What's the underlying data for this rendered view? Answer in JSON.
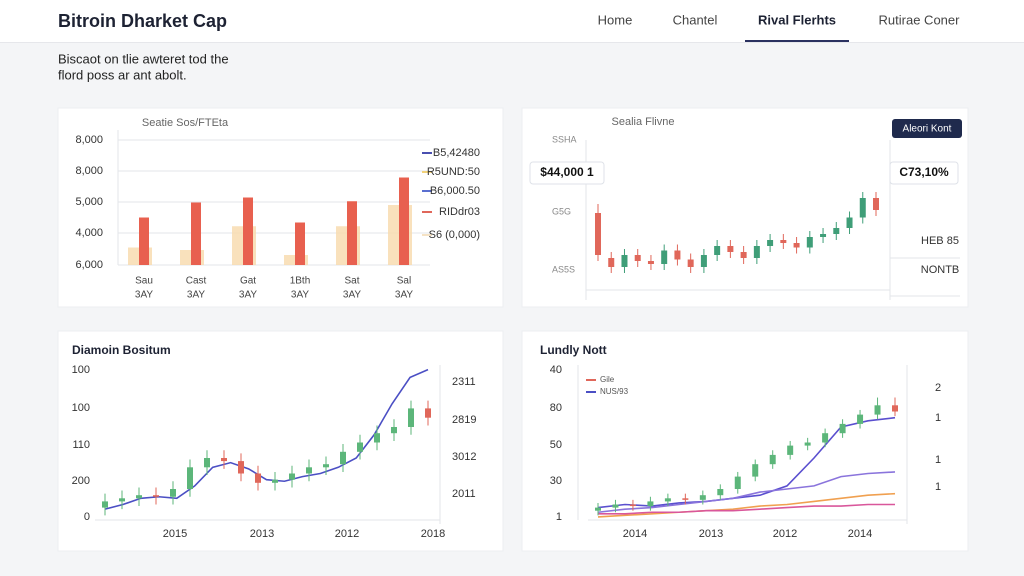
{
  "header": {
    "title": "Bitroin Dharket Cap",
    "nav": [
      "Home",
      "Chantel",
      "Rival Flerhts",
      "Rutirae Coner"
    ],
    "nav_active": 2
  },
  "intro": [
    "Biscaot on tlie awteret tod the",
    "flord poss ar ant abolt."
  ],
  "chart_data": [
    {
      "type": "bar",
      "title": "Seatie Sos/FTEta",
      "y_labels": [
        "8,000",
        "8,000",
        "5,000",
        "4,000",
        "6,000"
      ],
      "categories": [
        [
          "Sau",
          "3AY"
        ],
        [
          "Cast",
          "3AY"
        ],
        [
          "Gat",
          "3AY"
        ],
        [
          "1Bth",
          "3AY"
        ],
        [
          "Sat",
          "3AY"
        ],
        [
          "Sal",
          "3AY"
        ]
      ],
      "ylim": [
        0,
        100
      ],
      "series": [
        {
          "color": "#f8dcb0",
          "values": [
            14,
            12,
            31,
            8,
            31,
            48
          ]
        },
        {
          "color": "#e8604f",
          "values": [
            38,
            50,
            54,
            34,
            51,
            70
          ]
        }
      ],
      "legend": [
        {
          "label": "B5,42480",
          "color": "#4a4fb0"
        },
        {
          "label": "R5UND:50",
          "color": "#f2d27a"
        },
        {
          "label": "B6,000.50",
          "color": "#5a6fd0"
        },
        {
          "label": "RIDdr03",
          "color": "#e0675a"
        },
        {
          "label": "S6 (0,000)",
          "color": "#f5e2c4"
        }
      ],
      "grid": true
    },
    {
      "type": "candlestick",
      "title": "Sealia Flivne",
      "button": "Aleori Kont",
      "y_labels": [
        "SSHA",
        "G5G",
        "AS5S"
      ],
      "y2_labels": [
        "HEB 85",
        "NONTB"
      ],
      "price_box": "$44,000 1",
      "change_box": "C73,10%",
      "ylim": [
        0,
        100
      ],
      "up_color": "#3f9e78",
      "down_color": "#e0675a",
      "candles": {
        "open": [
          58,
          28,
          22,
          30,
          26,
          24,
          33,
          27,
          22,
          30,
          36,
          32,
          28,
          36,
          40,
          38,
          35,
          42,
          44,
          48,
          55,
          68
        ],
        "close": [
          30,
          22,
          30,
          26,
          24,
          33,
          27,
          22,
          30,
          36,
          32,
          28,
          36,
          40,
          38,
          35,
          42,
          44,
          48,
          55,
          68,
          60
        ],
        "high": [
          64,
          32,
          34,
          34,
          30,
          37,
          37,
          31,
          34,
          40,
          40,
          36,
          40,
          44,
          44,
          42,
          46,
          48,
          52,
          59,
          72,
          72
        ],
        "low": [
          26,
          18,
          18,
          22,
          20,
          20,
          23,
          18,
          18,
          26,
          28,
          24,
          24,
          32,
          34,
          31,
          31,
          38,
          40,
          44,
          51,
          56
        ]
      }
    },
    {
      "type": "combo",
      "title": "Diamoin Bositum",
      "y_labels": [
        "100",
        "100",
        "110",
        "200",
        "0"
      ],
      "y2_labels": [
        "2311",
        "2819",
        "3012",
        "2011"
      ],
      "x_labels": [
        "2015",
        "2013",
        "2012",
        "2018"
      ],
      "ylim": [
        0,
        100
      ],
      "up_color": "#5cb67a",
      "down_color": "#e0675a",
      "series": [
        {
          "color": "#4b4fc4",
          "values": [
            7,
            10,
            14,
            15,
            14,
            22,
            34,
            37,
            33,
            26,
            25,
            28,
            30,
            34,
            40,
            55,
            75,
            92,
            97
          ]
        }
      ],
      "candles": {
        "open": [
          8,
          12,
          14,
          16,
          15,
          20,
          34,
          40,
          38,
          30,
          24,
          26,
          30,
          34,
          36,
          44,
          50,
          56,
          60,
          72
        ],
        "close": [
          12,
          14,
          16,
          15,
          20,
          34,
          40,
          38,
          30,
          24,
          26,
          30,
          34,
          36,
          44,
          50,
          56,
          60,
          72,
          66
        ],
        "high": [
          17,
          19,
          21,
          21,
          25,
          39,
          45,
          45,
          43,
          35,
          31,
          35,
          39,
          41,
          49,
          55,
          61,
          65,
          77,
          77
        ],
        "low": [
          3,
          7,
          9,
          10,
          10,
          15,
          29,
          33,
          25,
          19,
          19,
          21,
          25,
          29,
          31,
          39,
          45,
          51,
          55,
          61
        ]
      }
    },
    {
      "type": "combo",
      "title": "Lundly Nott",
      "y_labels": [
        "40",
        "80",
        "50",
        "30",
        "1"
      ],
      "y2_labels": [
        "2",
        "1",
        "1",
        "1"
      ],
      "x_labels": [
        "2014",
        "2013",
        "2012",
        "2014"
      ],
      "legend": [
        {
          "label": "Gile",
          "color": "#e0675a"
        },
        {
          "label": "NUS/93",
          "color": "#4b4fc4"
        }
      ],
      "ylim": [
        0,
        100
      ],
      "up_color": "#5cb67a",
      "down_color": "#e0675a",
      "series": [
        {
          "color": "#5a4fcf",
          "values": [
            8,
            10,
            9,
            11,
            12,
            14,
            16,
            22,
            40,
            60,
            64,
            66
          ]
        },
        {
          "color": "#8a74dc",
          "values": [
            5,
            7,
            8,
            10,
            12,
            14,
            18,
            20,
            22,
            28,
            30,
            31
          ]
        },
        {
          "color": "#f0a050",
          "values": [
            2,
            3,
            4,
            5,
            6,
            7,
            9,
            10,
            12,
            14,
            16,
            17
          ]
        },
        {
          "color": "#d9579b",
          "values": [
            4,
            4,
            5,
            5,
            6,
            6,
            7,
            8,
            9,
            9,
            10,
            10
          ]
        }
      ],
      "candles": {
        "open": [
          6,
          8,
          10,
          9,
          12,
          14,
          13,
          16,
          20,
          28,
          36,
          42,
          48,
          50,
          56,
          62,
          68,
          74
        ],
        "close": [
          8,
          10,
          9,
          12,
          14,
          13,
          16,
          20,
          28,
          36,
          42,
          48,
          50,
          56,
          62,
          68,
          74,
          70
        ],
        "high": [
          11,
          13,
          13,
          15,
          17,
          17,
          19,
          23,
          31,
          39,
          45,
          51,
          53,
          59,
          65,
          71,
          79,
          79
        ],
        "low": [
          3,
          5,
          6,
          6,
          9,
          10,
          10,
          13,
          17,
          25,
          33,
          39,
          45,
          47,
          53,
          59,
          65,
          67
        ]
      }
    }
  ]
}
